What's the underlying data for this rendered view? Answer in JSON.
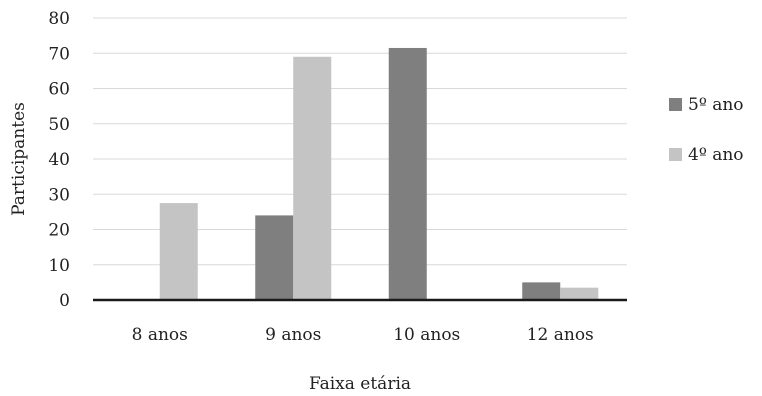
{
  "chart_data": {
    "type": "bar",
    "xlabel": "Faixa etária",
    "ylabel": "Participantes",
    "categories": [
      "8 anos",
      "9 anos",
      "10 anos",
      "12 anos"
    ],
    "series": [
      {
        "name": "5º ano",
        "color": "#7f7f80",
        "values": [
          0,
          24,
          71.5,
          5
        ]
      },
      {
        "name": "4º ano",
        "color": "#c4c4c5",
        "values": [
          27.5,
          69,
          0,
          3.5
        ]
      }
    ],
    "ylim": [
      0,
      80
    ],
    "yticks": [
      "0",
      "10",
      "20",
      "30",
      "40",
      "50",
      "60",
      "70",
      "80"
    ],
    "grid": true,
    "legend_position": "right"
  }
}
